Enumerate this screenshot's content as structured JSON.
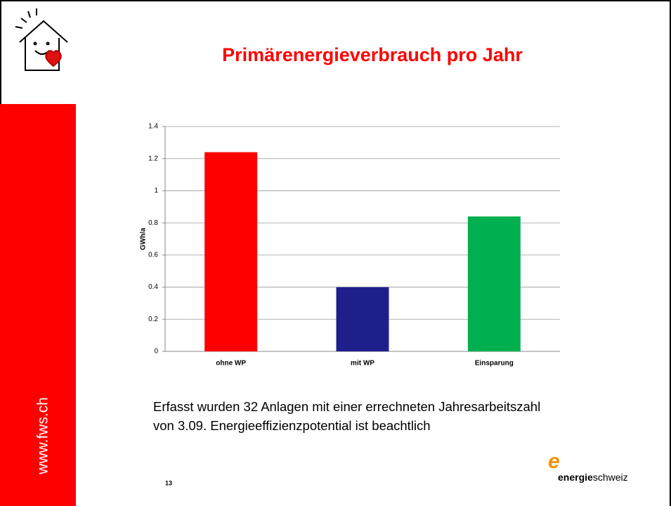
{
  "chart_data": {
    "type": "bar",
    "title": "Primärenergieverbrauch pro Jahr",
    "y_label": "GWh/a",
    "categories": [
      "ohne WP",
      "mit WP",
      "Einsparung"
    ],
    "values": [
      1.24,
      0.4,
      0.84
    ],
    "colors": [
      "#ff0000",
      "#1f1f8c",
      "#00b050"
    ],
    "ylim": [
      0,
      1.4
    ],
    "yticks": [
      0,
      0.2,
      0.4,
      0.6,
      0.8,
      1,
      1.2,
      1.4
    ],
    "grid": true
  },
  "slide": {
    "sidebar": "www.fws.ch",
    "caption": [
      "Erfasst wurden 32 Anlagen mit einer errechneten Jahresarbeitszahl",
      "von 3.09. Energieeffizienzpotential ist beachtlich"
    ],
    "page_number": "13",
    "logo": {
      "bold": "energie",
      "regular": "schweiz"
    }
  }
}
